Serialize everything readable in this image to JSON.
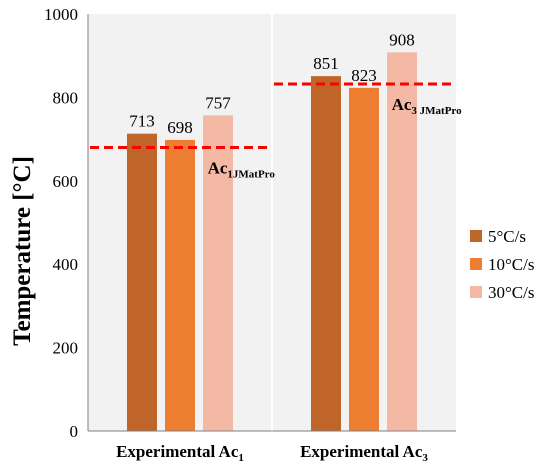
{
  "chart_data": {
    "type": "bar",
    "categories": [
      "Experimental Ac1",
      "Experimental Ac3"
    ],
    "category_labels": [
      {
        "main": "Experimental Ac",
        "sub": "1"
      },
      {
        "main": "Experimental Ac",
        "sub": "3"
      }
    ],
    "series": [
      {
        "name": "5°C/s",
        "color": "#C0652A",
        "values": [
          713,
          851
        ]
      },
      {
        "name": "10°C/s",
        "color": "#ED7D31",
        "values": [
          698,
          823
        ]
      },
      {
        "name": "30°C/s",
        "color": "#F4B9A4",
        "values": [
          757,
          908
        ]
      }
    ],
    "ylabel": "Temperature  [°C]",
    "xlabel": "",
    "ylim": [
      0,
      1000
    ],
    "yticks": [
      0,
      200,
      400,
      600,
      800,
      1000
    ],
    "grid": false,
    "legend": "right",
    "reference_lines": [
      {
        "category_index": 0,
        "value": 680,
        "label_main": "Ac",
        "label_sub": "1JMatPro",
        "color": "#FF0000",
        "style": "dashed"
      },
      {
        "category_index": 1,
        "value": 832,
        "label_main": "Ac",
        "label_sub": "3 JMatPro",
        "color": "#FF0000",
        "style": "dashed"
      }
    ],
    "panel_color": "#F2F2F2"
  }
}
